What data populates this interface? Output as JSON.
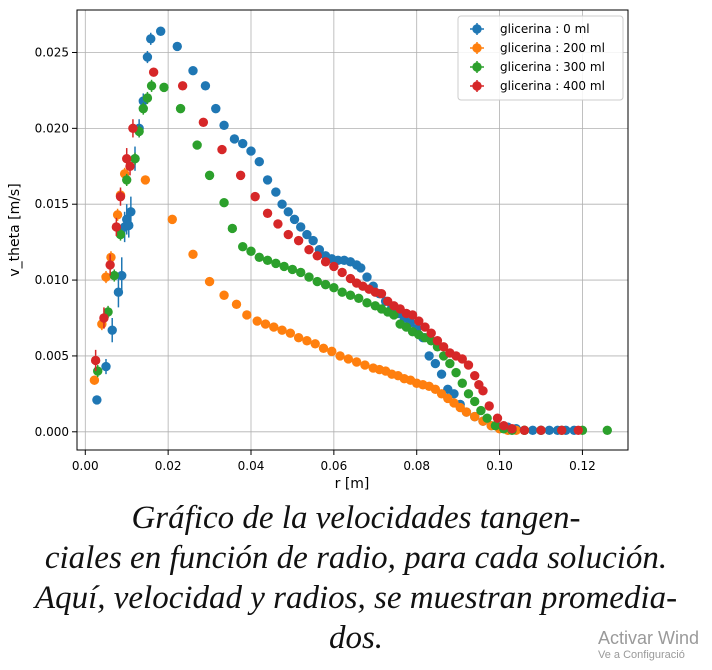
{
  "chart_data": {
    "type": "scatter",
    "xlabel": "r [m]",
    "ylabel": "v_theta [m/s]",
    "xlim": [
      -0.002,
      0.131
    ],
    "ylim": [
      -0.0012,
      0.0278
    ],
    "xticks": [
      "0.00",
      "0.02",
      "0.04",
      "0.06",
      "0.08",
      "0.10",
      "0.12"
    ],
    "yticks": [
      "0.000",
      "0.005",
      "0.010",
      "0.015",
      "0.020",
      "0.025"
    ],
    "grid": true,
    "legend_position": "top-right",
    "series": [
      {
        "name": "glicerina : 0 ml",
        "color": "#1f77b4",
        "points": [
          [
            0.0028,
            0.0021,
            0
          ],
          [
            0.005,
            0.0043,
            0.0005
          ],
          [
            0.0065,
            0.0067,
            0.0008
          ],
          [
            0.008,
            0.0092,
            0.001
          ],
          [
            0.0088,
            0.0103,
            0.0012
          ],
          [
            0.0095,
            0.0135,
            0.001
          ],
          [
            0.01,
            0.014,
            0.001
          ],
          [
            0.0105,
            0.0136,
            0.0008
          ],
          [
            0.011,
            0.0145,
            0.001
          ],
          [
            0.012,
            0.018,
            0.0008
          ],
          [
            0.013,
            0.02,
            0.0006
          ],
          [
            0.014,
            0.0218,
            0.0005
          ],
          [
            0.015,
            0.0247,
            0.0004
          ],
          [
            0.0158,
            0.0259,
            0.0004
          ],
          [
            0.0182,
            0.0264,
            0
          ],
          [
            0.0222,
            0.0254,
            0
          ],
          [
            0.026,
            0.0238,
            0
          ],
          [
            0.029,
            0.0228,
            0
          ],
          [
            0.0315,
            0.0213,
            0
          ],
          [
            0.0335,
            0.0202,
            0
          ],
          [
            0.036,
            0.0193,
            0
          ],
          [
            0.038,
            0.019,
            0
          ],
          [
            0.04,
            0.0185,
            0
          ],
          [
            0.042,
            0.0178,
            0
          ],
          [
            0.044,
            0.0166,
            0
          ],
          [
            0.046,
            0.0158,
            0
          ],
          [
            0.0475,
            0.015,
            0
          ],
          [
            0.049,
            0.0145,
            0
          ],
          [
            0.0505,
            0.014,
            0
          ],
          [
            0.052,
            0.0135,
            0
          ],
          [
            0.0535,
            0.013,
            0
          ],
          [
            0.055,
            0.0126,
            0
          ],
          [
            0.0565,
            0.012,
            0
          ],
          [
            0.058,
            0.0116,
            0
          ],
          [
            0.0595,
            0.0114,
            0
          ],
          [
            0.061,
            0.0113,
            0
          ],
          [
            0.0625,
            0.0113,
            0
          ],
          [
            0.064,
            0.0112,
            0
          ],
          [
            0.0655,
            0.011,
            0
          ],
          [
            0.0665,
            0.0108,
            0
          ],
          [
            0.068,
            0.0102,
            0
          ],
          [
            0.0695,
            0.0096,
            0
          ],
          [
            0.071,
            0.0091,
            0
          ],
          [
            0.0725,
            0.0086,
            0
          ],
          [
            0.074,
            0.0082,
            0
          ],
          [
            0.0755,
            0.0078,
            0
          ],
          [
            0.077,
            0.0075,
            0
          ],
          [
            0.0785,
            0.0072,
            0
          ],
          [
            0.08,
            0.0068,
            0
          ],
          [
            0.0815,
            0.0062,
            0
          ],
          [
            0.083,
            0.005,
            0
          ],
          [
            0.0845,
            0.0045,
            0
          ],
          [
            0.086,
            0.0038,
            0
          ],
          [
            0.0875,
            0.0028,
            0
          ],
          [
            0.089,
            0.0025,
            0
          ],
          [
            0.0905,
            0.0018,
            0
          ],
          [
            0.092,
            0.0013,
            0
          ],
          [
            0.094,
            0.001,
            0
          ],
          [
            0.096,
            0.0007,
            0
          ],
          [
            0.098,
            0.0004,
            0
          ],
          [
            0.1,
            0.0003,
            0
          ],
          [
            0.102,
            0.0003,
            0
          ],
          [
            0.104,
            0.0002,
            0
          ],
          [
            0.106,
            0.0001,
            0
          ],
          [
            0.108,
            0.0001,
            0
          ],
          [
            0.11,
            0.0001,
            0
          ],
          [
            0.112,
            0.0001,
            0
          ],
          [
            0.114,
            0.0001,
            0
          ],
          [
            0.116,
            0.0001,
            0
          ],
          [
            0.118,
            0.0001,
            0
          ]
        ]
      },
      {
        "name": "glicerina : 200 ml",
        "color": "#ff7f0e",
        "points": [
          [
            0.0022,
            0.0034,
            0.0003
          ],
          [
            0.004,
            0.0071,
            0.0004
          ],
          [
            0.005,
            0.0102,
            0.0004
          ],
          [
            0.0062,
            0.0115,
            0.0004
          ],
          [
            0.0078,
            0.0143,
            0.0004
          ],
          [
            0.0085,
            0.0156,
            0.0004
          ],
          [
            0.0095,
            0.017,
            0.0004
          ],
          [
            0.0145,
            0.0166,
            0
          ],
          [
            0.021,
            0.014,
            0
          ],
          [
            0.026,
            0.0117,
            0
          ],
          [
            0.03,
            0.0099,
            0
          ],
          [
            0.0335,
            0.009,
            0
          ],
          [
            0.0365,
            0.0084,
            0
          ],
          [
            0.039,
            0.0077,
            0
          ],
          [
            0.0415,
            0.0073,
            0
          ],
          [
            0.0435,
            0.0071,
            0
          ],
          [
            0.0455,
            0.0069,
            0
          ],
          [
            0.0475,
            0.0067,
            0
          ],
          [
            0.0495,
            0.0065,
            0
          ],
          [
            0.0515,
            0.0062,
            0
          ],
          [
            0.0535,
            0.006,
            0
          ],
          [
            0.0555,
            0.0058,
            0
          ],
          [
            0.0575,
            0.0055,
            0
          ],
          [
            0.0595,
            0.0053,
            0
          ],
          [
            0.0615,
            0.005,
            0
          ],
          [
            0.0635,
            0.0048,
            0
          ],
          [
            0.0655,
            0.0046,
            0
          ],
          [
            0.0675,
            0.0044,
            0
          ],
          [
            0.0695,
            0.0042,
            0
          ],
          [
            0.071,
            0.0041,
            0
          ],
          [
            0.0725,
            0.004,
            0
          ],
          [
            0.074,
            0.0038,
            0
          ],
          [
            0.0755,
            0.0037,
            0
          ],
          [
            0.077,
            0.0035,
            0
          ],
          [
            0.0785,
            0.0034,
            0
          ],
          [
            0.08,
            0.0032,
            0
          ],
          [
            0.0815,
            0.0031,
            0
          ],
          [
            0.083,
            0.003,
            0
          ],
          [
            0.0845,
            0.0028,
            0
          ],
          [
            0.086,
            0.0025,
            0
          ],
          [
            0.0875,
            0.0022,
            0
          ],
          [
            0.089,
            0.0019,
            0
          ],
          [
            0.0905,
            0.0016,
            0
          ],
          [
            0.092,
            0.0013,
            0
          ],
          [
            0.094,
            0.001,
            0
          ],
          [
            0.096,
            0.0007,
            0
          ],
          [
            0.098,
            0.0004,
            0
          ],
          [
            0.1,
            0.0002,
            0
          ],
          [
            0.102,
            0.0001,
            0
          ],
          [
            0.104,
            0.0001,
            0
          ],
          [
            0.106,
            0.0001,
            0
          ]
        ]
      },
      {
        "name": "glicerina : 300 ml",
        "color": "#2ca02c",
        "points": [
          [
            0.003,
            0.004,
            0.0004
          ],
          [
            0.0055,
            0.0079,
            0.0004
          ],
          [
            0.007,
            0.0103,
            0.0004
          ],
          [
            0.0085,
            0.013,
            0.0004
          ],
          [
            0.01,
            0.0166,
            0.0004
          ],
          [
            0.012,
            0.018,
            0.0004
          ],
          [
            0.013,
            0.0198,
            0.0004
          ],
          [
            0.014,
            0.0213,
            0.0004
          ],
          [
            0.015,
            0.022,
            0.0004
          ],
          [
            0.016,
            0.0228,
            0.0004
          ],
          [
            0.019,
            0.0227,
            0
          ],
          [
            0.023,
            0.0213,
            0
          ],
          [
            0.027,
            0.0189,
            0
          ],
          [
            0.03,
            0.0169,
            0
          ],
          [
            0.0335,
            0.0151,
            0
          ],
          [
            0.0355,
            0.0134,
            0
          ],
          [
            0.038,
            0.0122,
            0
          ],
          [
            0.04,
            0.0119,
            0
          ],
          [
            0.042,
            0.0115,
            0
          ],
          [
            0.044,
            0.0113,
            0
          ],
          [
            0.046,
            0.0111,
            0
          ],
          [
            0.048,
            0.0109,
            0
          ],
          [
            0.05,
            0.0107,
            0
          ],
          [
            0.052,
            0.0105,
            0
          ],
          [
            0.054,
            0.0102,
            0
          ],
          [
            0.056,
            0.0099,
            0
          ],
          [
            0.058,
            0.0097,
            0
          ],
          [
            0.06,
            0.0095,
            0
          ],
          [
            0.062,
            0.0092,
            0
          ],
          [
            0.064,
            0.009,
            0
          ],
          [
            0.066,
            0.0088,
            0
          ],
          [
            0.068,
            0.0085,
            0
          ],
          [
            0.07,
            0.0083,
            0
          ],
          [
            0.0715,
            0.0081,
            0
          ],
          [
            0.073,
            0.0079,
            0
          ],
          [
            0.0745,
            0.0077,
            0
          ],
          [
            0.076,
            0.0071,
            0
          ],
          [
            0.0775,
            0.0069,
            0
          ],
          [
            0.079,
            0.0066,
            0
          ],
          [
            0.0805,
            0.0064,
            0
          ],
          [
            0.082,
            0.0062,
            0
          ],
          [
            0.0835,
            0.006,
            0
          ],
          [
            0.085,
            0.0056,
            0
          ],
          [
            0.0865,
            0.005,
            0
          ],
          [
            0.088,
            0.0045,
            0
          ],
          [
            0.0895,
            0.0039,
            0
          ],
          [
            0.091,
            0.0032,
            0
          ],
          [
            0.0925,
            0.0025,
            0
          ],
          [
            0.094,
            0.002,
            0
          ],
          [
            0.0955,
            0.0014,
            0
          ],
          [
            0.097,
            0.0009,
            0
          ],
          [
            0.099,
            0.0004,
            0
          ],
          [
            0.101,
            0.0002,
            0
          ],
          [
            0.103,
            0.0001,
            0
          ],
          [
            0.106,
            0.0001,
            0
          ],
          [
            0.11,
            0.0001,
            0
          ],
          [
            0.115,
            0.0001,
            0
          ],
          [
            0.12,
            0.0001,
            0
          ],
          [
            0.126,
            0.0001,
            0
          ]
        ]
      },
      {
        "name": "glicerina : 400 ml",
        "color": "#d62728",
        "points": [
          [
            0.0025,
            0.0047,
            0.0007
          ],
          [
            0.0045,
            0.0075,
            0.0007
          ],
          [
            0.006,
            0.011,
            0.0007
          ],
          [
            0.0075,
            0.0135,
            0.0006
          ],
          [
            0.0085,
            0.0155,
            0.0006
          ],
          [
            0.01,
            0.018,
            0.0007
          ],
          [
            0.0108,
            0.0175,
            0.0006
          ],
          [
            0.0115,
            0.02,
            0.0006
          ],
          [
            0.0165,
            0.0237,
            0
          ],
          [
            0.0235,
            0.0228,
            0
          ],
          [
            0.0285,
            0.0204,
            0
          ],
          [
            0.033,
            0.0186,
            0
          ],
          [
            0.0375,
            0.0169,
            0
          ],
          [
            0.041,
            0.0155,
            0
          ],
          [
            0.044,
            0.0144,
            0
          ],
          [
            0.0465,
            0.0137,
            0
          ],
          [
            0.049,
            0.013,
            0
          ],
          [
            0.0515,
            0.0126,
            0
          ],
          [
            0.054,
            0.012,
            0
          ],
          [
            0.056,
            0.0116,
            0
          ],
          [
            0.058,
            0.0112,
            0
          ],
          [
            0.06,
            0.0109,
            0
          ],
          [
            0.062,
            0.0105,
            0
          ],
          [
            0.064,
            0.0101,
            0
          ],
          [
            0.0655,
            0.0098,
            0
          ],
          [
            0.067,
            0.0096,
            0
          ],
          [
            0.0685,
            0.0094,
            0
          ],
          [
            0.07,
            0.0092,
            0
          ],
          [
            0.0715,
            0.0091,
            0
          ],
          [
            0.073,
            0.0086,
            0
          ],
          [
            0.0745,
            0.0083,
            0
          ],
          [
            0.076,
            0.0081,
            0
          ],
          [
            0.0775,
            0.0078,
            0
          ],
          [
            0.079,
            0.0077,
            0
          ],
          [
            0.0805,
            0.0073,
            0
          ],
          [
            0.082,
            0.0069,
            0
          ],
          [
            0.0835,
            0.0065,
            0
          ],
          [
            0.085,
            0.006,
            0
          ],
          [
            0.0865,
            0.0056,
            0
          ],
          [
            0.088,
            0.0052,
            0
          ],
          [
            0.0895,
            0.005,
            0
          ],
          [
            0.091,
            0.0048,
            0
          ],
          [
            0.0925,
            0.0044,
            0
          ],
          [
            0.094,
            0.0037,
            0
          ],
          [
            0.095,
            0.0031,
            0
          ],
          [
            0.096,
            0.0027,
            0
          ],
          [
            0.0975,
            0.0017,
            0
          ],
          [
            0.0995,
            0.0009,
            0
          ],
          [
            0.101,
            0.0004,
            0
          ],
          [
            0.103,
            0.0002,
            0
          ],
          [
            0.106,
            0.0001,
            0
          ],
          [
            0.11,
            0.0001,
            0
          ],
          [
            0.115,
            0.0001,
            0
          ],
          [
            0.119,
            0.0001,
            0
          ]
        ]
      }
    ]
  },
  "caption": {
    "line1": "Gráfico de la velocidades tangen-",
    "line2": "ciales en función de radio, para cada solución.",
    "line3": "Aquí, velocidad y radios, se muestran promedia-",
    "line4": "dos."
  },
  "watermark": {
    "line1": "Activar Wind",
    "line2": "Ve a Configuració"
  }
}
